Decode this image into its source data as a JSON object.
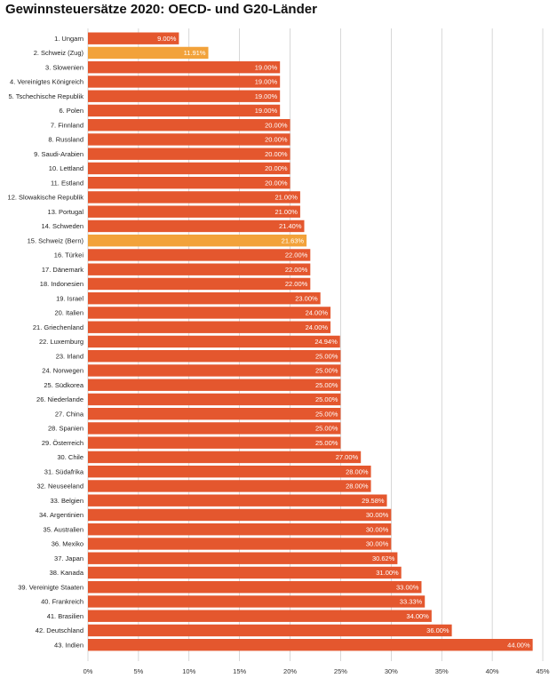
{
  "colors": {
    "bar": "#e4572e",
    "highlight": "#f2a23a",
    "grid": "#bdbdbd",
    "background": "#ffffff"
  },
  "chart_data": {
    "type": "bar",
    "orientation": "horizontal",
    "title": "Gewinnsteuersätze 2020: OECD- und G20-Länder",
    "xlabel": "",
    "ylabel": "",
    "xlim": [
      0,
      45
    ],
    "ticks": [
      "0%",
      "5%",
      "10%",
      "15%",
      "20%",
      "25%",
      "30%",
      "35%",
      "40%",
      "45%"
    ],
    "grid": "vertical",
    "legend": "none",
    "categories": [
      "1. Ungarn",
      "2. Schweiz (Zug)",
      "3. Slowenien",
      "4. Vereinigtes Königreich",
      "5. Tschechische Republik",
      "6. Polen",
      "7. Finnland",
      "8. Russland",
      "9. Saudi-Arabien",
      "10. Lettland",
      "11. Estland",
      "12. Slowakische Republik",
      "13. Portugal",
      "14. Schweden",
      "15. Schweiz (Bern)",
      "16. Türkei",
      "17. Dänemark",
      "18. Indonesien",
      "19. Israel",
      "20. Italien",
      "21. Griechenland",
      "22. Luxemburg",
      "23. Irland",
      "24. Norwegen",
      "25. Südkorea",
      "26. Niederlande",
      "27. China",
      "28. Spanien",
      "29. Österreich",
      "30. Chile",
      "31. Südafrika",
      "32. Neuseeland",
      "33. Belgien",
      "34. Argentinien",
      "35. Australien",
      "36. Mexiko",
      "37. Japan",
      "38. Kanada",
      "39. Vereinigte Staaten",
      "40. Frankreich",
      "41. Brasilien",
      "42. Deutschland",
      "43. Indien"
    ],
    "values": [
      9.0,
      11.91,
      19.0,
      19.0,
      19.0,
      19.0,
      20.0,
      20.0,
      20.0,
      20.0,
      20.0,
      21.0,
      21.0,
      21.4,
      21.63,
      22.0,
      22.0,
      22.0,
      23.0,
      24.0,
      24.0,
      24.94,
      25.0,
      25.0,
      25.0,
      25.0,
      25.0,
      25.0,
      25.0,
      27.0,
      28.0,
      28.0,
      29.58,
      30.0,
      30.0,
      30.0,
      30.62,
      31.0,
      33.0,
      33.33,
      34.0,
      36.0,
      44.0
    ],
    "value_labels": [
      "9.00%",
      "11.91%",
      "19.00%",
      "19.00%",
      "19.00%",
      "19.00%",
      "20.00%",
      "20.00%",
      "20.00%",
      "20.00%",
      "20.00%",
      "21.00%",
      "21.00%",
      "21.40%",
      "21.63%",
      "22.00%",
      "22.00%",
      "22.00%",
      "23.00%",
      "24.00%",
      "24.00%",
      "24.94%",
      "25.00%",
      "25.00%",
      "25.00%",
      "25.00%",
      "25.00%",
      "25.00%",
      "25.00%",
      "27.00%",
      "28.00%",
      "28.00%",
      "29.58%",
      "30.00%",
      "30.00%",
      "30.00%",
      "30.62%",
      "31.00%",
      "33.00%",
      "33.33%",
      "34.00%",
      "36.00%",
      "44.00%"
    ],
    "highlighted": [
      "2. Schweiz (Zug)",
      "15. Schweiz (Bern)"
    ]
  }
}
